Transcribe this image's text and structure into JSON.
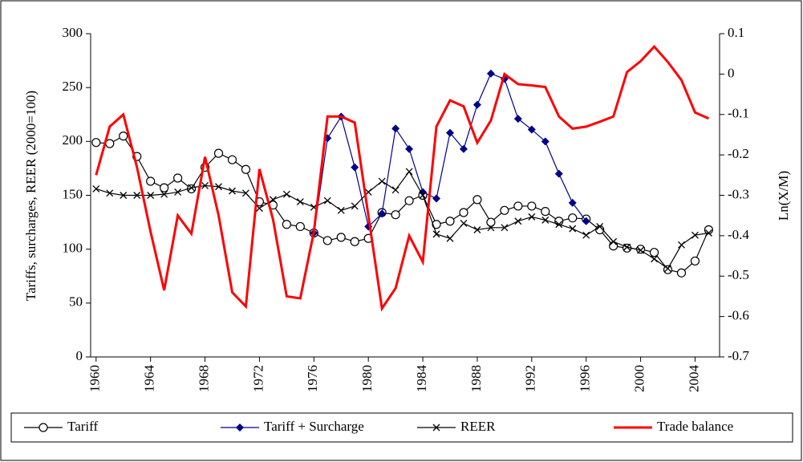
{
  "chart_data": {
    "type": "line",
    "y_label": "Tariffs, surcharges, REER (2000=100)",
    "y2_label": "Ln(X/M)",
    "x": [
      1960,
      1961,
      1962,
      1963,
      1964,
      1965,
      1966,
      1967,
      1968,
      1969,
      1970,
      1971,
      1972,
      1973,
      1974,
      1975,
      1976,
      1977,
      1978,
      1979,
      1980,
      1981,
      1982,
      1983,
      1984,
      1985,
      1986,
      1987,
      1988,
      1989,
      1990,
      1991,
      1992,
      1993,
      1994,
      1995,
      1996,
      1997,
      1998,
      1999,
      2000,
      2001,
      2002,
      2003,
      2004,
      2005
    ],
    "xlim": [
      1959.6,
      2005.8
    ],
    "xticks": [
      1960,
      1964,
      1968,
      1972,
      1976,
      1980,
      1984,
      1988,
      1992,
      1996,
      2000,
      2004
    ],
    "ylim": [
      0,
      300
    ],
    "yticks": [
      0,
      50,
      100,
      150,
      200,
      250,
      300
    ],
    "y2lim": [
      -0.7,
      0.1
    ],
    "y2ticks": [
      -0.7,
      -0.6,
      -0.5,
      -0.4,
      -0.3,
      -0.2,
      -0.1,
      0,
      0.1
    ],
    "grid": false,
    "legend": "bottom",
    "series": [
      {
        "name": "Tariff",
        "color": "#000000",
        "marker": "circle",
        "values": [
          199,
          198,
          205,
          186,
          163,
          157,
          166,
          156,
          176,
          189,
          183,
          174,
          144,
          141,
          123,
          121,
          115,
          108,
          111,
          107,
          110,
          134,
          132,
          145,
          150,
          123,
          126,
          134,
          146,
          125,
          136,
          140,
          140,
          135,
          126,
          129,
          128,
          118,
          103,
          101,
          100,
          97,
          81,
          78,
          89,
          118
        ]
      },
      {
        "name": "Tariff + Surcharge",
        "color": "#00008B",
        "marker": "diamond",
        "values": [
          null,
          null,
          null,
          null,
          null,
          null,
          null,
          null,
          null,
          null,
          null,
          null,
          null,
          null,
          null,
          null,
          115,
          203,
          223,
          176,
          121,
          133,
          212,
          193,
          153,
          147,
          208,
          193,
          234,
          263,
          258,
          221,
          211,
          200,
          170,
          143,
          126,
          null,
          null,
          null,
          null,
          null,
          null,
          null,
          null,
          null
        ]
      },
      {
        "name": "REER",
        "color": "#000000",
        "marker": "x",
        "values": [
          156,
          152,
          150,
          150,
          150,
          151,
          153,
          157,
          159,
          158,
          154,
          152,
          138,
          146,
          151,
          144,
          139,
          145,
          136,
          140,
          153,
          163,
          155,
          172,
          150,
          114,
          110,
          124,
          118,
          120,
          120,
          126,
          130,
          127,
          123,
          119,
          113,
          121,
          107,
          102,
          99,
          91,
          82,
          104,
          113,
          115
        ]
      },
      {
        "name": "Trade balance",
        "color": "#FF0000",
        "marker": "none",
        "axis": "y2",
        "values": [
          -0.25,
          -0.13,
          -0.1,
          -0.23,
          -0.39,
          -0.535,
          -0.35,
          -0.395,
          -0.205,
          -0.35,
          -0.54,
          -0.575,
          -0.235,
          -0.36,
          -0.55,
          -0.555,
          -0.39,
          -0.105,
          -0.105,
          -0.12,
          -0.35,
          -0.58,
          -0.53,
          -0.4,
          -0.465,
          -0.13,
          -0.065,
          -0.08,
          -0.17,
          -0.115,
          0,
          -0.025,
          -0.028,
          -0.032,
          -0.105,
          -0.135,
          -0.13,
          -0.118,
          -0.105,
          0.005,
          0.032,
          0.068,
          0.03,
          -0.015,
          -0.095,
          -0.11
        ]
      }
    ]
  }
}
